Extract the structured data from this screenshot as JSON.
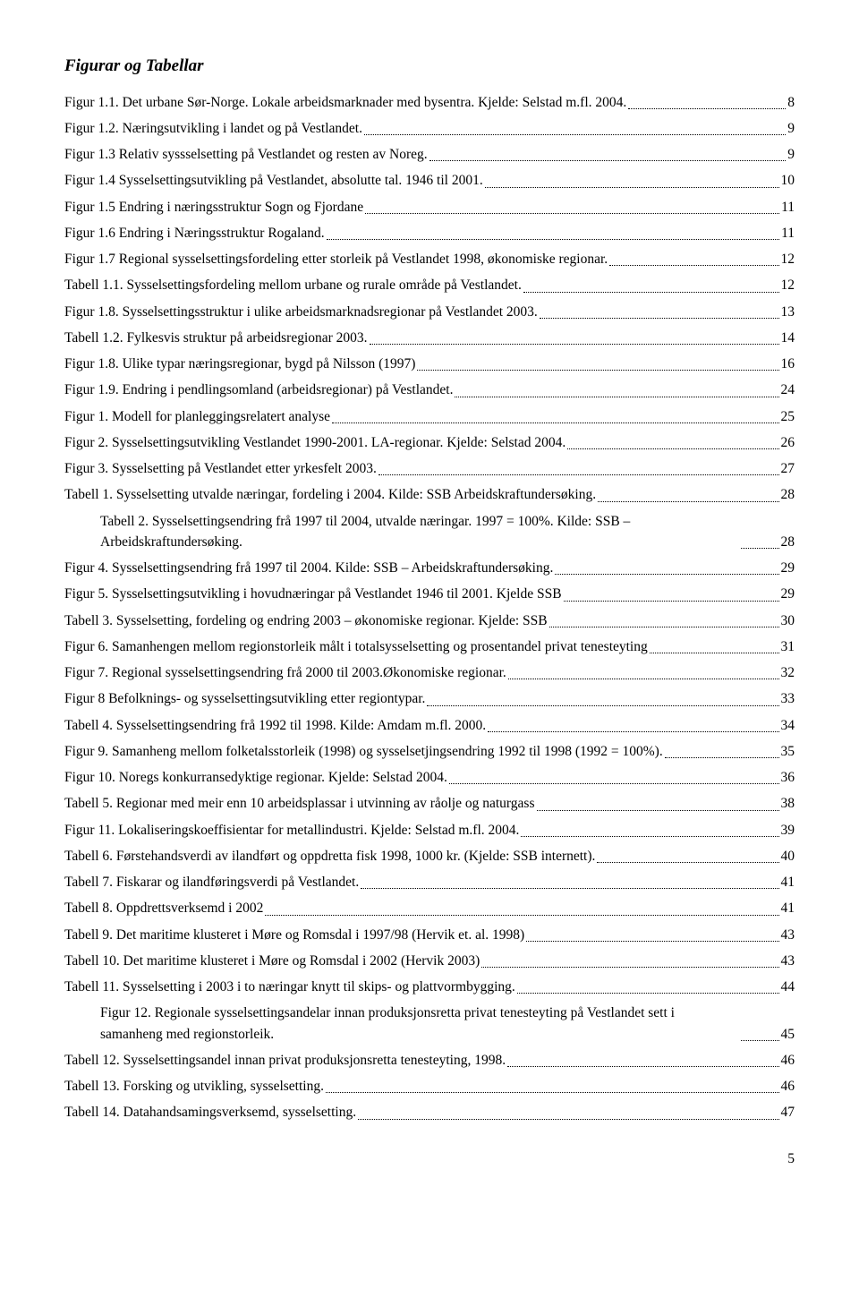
{
  "title": "Figurar og Tabellar",
  "page_number": "5",
  "entries": [
    {
      "label": "Figur 1.1. Det urbane Sør-Norge. Lokale arbeidsmarknader med bysentra. Kjelde: Selstad m.fl. 2004.",
      "page": "8",
      "indent": false
    },
    {
      "label": "Figur 1.2. Næringsutvikling i landet og på Vestlandet.",
      "page": "9",
      "indent": false
    },
    {
      "label": "Figur 1.3 Relativ syssselsetting på Vestlandet og resten av Noreg.",
      "page": "9",
      "indent": false
    },
    {
      "label": "Figur 1.4 Sysselsettingsutvikling på Vestlandet, absolutte tal. 1946 til 2001.",
      "page": "10",
      "indent": false
    },
    {
      "label": "Figur 1.5 Endring i næringsstruktur Sogn og Fjordane",
      "page": "11",
      "indent": false
    },
    {
      "label": "Figur 1.6 Endring i Næringsstruktur Rogaland.",
      "page": "11",
      "indent": false
    },
    {
      "label": "Figur 1.7 Regional sysselsettingsfordeling etter storleik på Vestlandet 1998, økonomiske regionar.",
      "page": "12",
      "indent": false
    },
    {
      "label": "Tabell 1.1. Sysselsettingsfordeling mellom urbane og rurale område på Vestlandet.",
      "page": "12",
      "indent": false
    },
    {
      "label": "Figur 1.8. Sysselsettingsstruktur i ulike arbeidsmarknadsregionar på Vestlandet 2003.",
      "page": "13",
      "indent": false
    },
    {
      "label": "Tabell 1.2. Fylkesvis struktur på arbeidsregionar 2003.",
      "page": "14",
      "indent": false
    },
    {
      "label": "Figur 1.8. Ulike typar næringsregionar, bygd på Nilsson (1997)",
      "page": "16",
      "indent": false
    },
    {
      "label": "Figur 1.9. Endring i pendlingsomland (arbeidsregionar) på Vestlandet.",
      "page": "24",
      "indent": false
    },
    {
      "label": "Figur 1. Modell for planleggingsrelatert analyse",
      "page": "25",
      "indent": false
    },
    {
      "label": "Figur 2. Sysselsettingsutvikling Vestlandet 1990-2001. LA-regionar. Kjelde: Selstad 2004.",
      "page": "26",
      "indent": false
    },
    {
      "label": "Figur 3. Sysselsetting på Vestlandet etter yrkesfelt 2003.",
      "page": "27",
      "indent": false
    },
    {
      "label": "Tabell 1. Sysselsetting utvalde næringar, fordeling i 2004. Kilde: SSB Arbeidskraftundersøking.",
      "page": "28",
      "indent": false
    },
    {
      "label": "Tabell 2. Sysselsettingsendring frå 1997 til 2004, utvalde næringar. 1997 = 100%. Kilde: SSB – Arbeidskraftundersøking.",
      "page": "28",
      "indent": true
    },
    {
      "label": "Figur 4. Sysselsettingsendring frå 1997 til 2004. Kilde: SSB – Arbeidskraftundersøking.",
      "page": "29",
      "indent": false
    },
    {
      "label": "Figur 5. Sysselsettingsutvikling i hovudnæringar på Vestlandet 1946 til 2001. Kjelde SSB",
      "page": "29",
      "indent": false
    },
    {
      "label": "Tabell 3. Sysselsetting, fordeling og endring 2003 – økonomiske regionar. Kjelde: SSB",
      "page": "30",
      "indent": false
    },
    {
      "label": "Figur 6. Samanhengen mellom regionstorleik målt i totalsysselsetting og prosentandel privat tenesteyting",
      "page": "31",
      "indent": false
    },
    {
      "label": "Figur 7. Regional sysselsettingsendring frå 2000 til 2003.Økonomiske regionar.",
      "page": "32",
      "indent": false
    },
    {
      "label": "Figur 8 Befolknings- og sysselsettingsutvikling etter regiontypar.",
      "page": "33",
      "indent": false
    },
    {
      "label": "Tabell 4. Sysselsettingsendring frå 1992 til 1998. Kilde: Amdam m.fl. 2000.",
      "page": "34",
      "indent": false
    },
    {
      "label": "Figur 9. Samanheng mellom folketalsstorleik (1998) og sysselsetjingsendring 1992 til 1998 (1992 = 100%).",
      "page": "35",
      "indent": false
    },
    {
      "label": "Figur 10. Noregs konkurransedyktige regionar. Kjelde: Selstad 2004.",
      "page": "36",
      "indent": false
    },
    {
      "label": "Tabell 5. Regionar med meir enn 10 arbeidsplassar i utvinning av råolje og naturgass",
      "page": "38",
      "indent": false
    },
    {
      "label": "Figur 11. Lokaliseringskoeffisientar for metallindustri. Kjelde: Selstad m.fl. 2004.",
      "page": "39",
      "indent": false
    },
    {
      "label": "Tabell 6. Førstehandsverdi av ilandført og oppdretta fisk 1998, 1000 kr. (Kjelde: SSB internett).",
      "page": "40",
      "indent": false
    },
    {
      "label": "Tabell 7. Fiskarar og ilandføringsverdi på Vestlandet.",
      "page": "41",
      "indent": false
    },
    {
      "label": "Tabell 8. Oppdrettsverksemd i 2002",
      "page": "41",
      "indent": false
    },
    {
      "label": "Tabell 9. Det maritime klusteret i Møre og Romsdal i 1997/98 (Hervik et. al. 1998)",
      "page": "43",
      "indent": false
    },
    {
      "label": "Tabell 10. Det maritime klusteret i Møre og Romsdal i 2002 (Hervik 2003)",
      "page": "43",
      "indent": false
    },
    {
      "label": "Tabell 11. Sysselsetting i 2003 i to næringar knytt til skips- og plattvormbygging.",
      "page": "44",
      "indent": false
    },
    {
      "label": "Figur 12. Regionale sysselsettingsandelar innan produksjonsretta privat tenesteyting på Vestlandet sett i samanheng med regionstorleik.",
      "page": "45",
      "indent": true
    },
    {
      "label": "Tabell 12. Sysselsettingsandel innan privat produksjonsretta tenesteyting, 1998.",
      "page": "46",
      "indent": false
    },
    {
      "label": "Tabell 13. Forsking og utvikling, sysselsetting.",
      "page": "46",
      "indent": false
    },
    {
      "label": "Tabell 14. Datahandsamingsverksemd, sysselsetting.",
      "page": "47",
      "indent": false
    }
  ]
}
